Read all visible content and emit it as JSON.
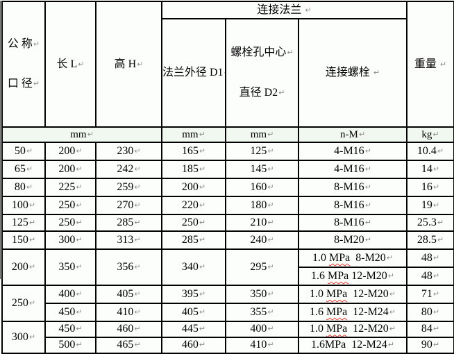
{
  "marks": {
    "paragraph": "↵"
  },
  "colors": {
    "grid": "#000000",
    "cell_bg": "#fcfefc",
    "units_bg": "#f1f8ef",
    "spellcheck_wavy": "#e23b2e",
    "paragraph_mark": "#8c8c8c",
    "text": "#000000"
  },
  "header": {
    "dn_line1": "公 称",
    "dn_line2": "口 径",
    "length": "长 L",
    "height": "高 H",
    "flange_group": "连接法兰 ",
    "flange_od": "法兰外径 D1",
    "bolt_circle_line1": "螺栓孔中心",
    "bolt_circle_line2": "直径 D2",
    "bolts": "连接螺栓 ",
    "weight": "重量 "
  },
  "units": {
    "dims": "mm",
    "d1": "mm",
    "d2": "mm",
    "bolts": "n-M",
    "weight": "kg"
  },
  "rows": [
    {
      "dn": "50",
      "l": "200",
      "h": "230",
      "d1": "165",
      "d2": "125",
      "bolts": "4-M16",
      "w": "10.4"
    },
    {
      "dn": "65",
      "l": "200",
      "h": "242",
      "d1": "185",
      "d2": "145",
      "bolts": "4-M16",
      "w": "14"
    },
    {
      "dn": "80",
      "l": "225",
      "h": "259",
      "d1": "200",
      "d2": "160",
      "bolts": "8-M16",
      "w": "16"
    },
    {
      "dn": "100",
      "l": "250",
      "h": "270",
      "d1": "220",
      "d2": "180",
      "bolts": "8-M16",
      "w": "19"
    },
    {
      "dn": "125",
      "l": "250",
      "h": "285",
      "d1": "250",
      "d2": "210",
      "bolts": "8-M16",
      "w": "25.3"
    },
    {
      "dn": "150",
      "l": "300",
      "h": "313",
      "d1": "285",
      "d2": "240",
      "bolts": "8-M20",
      "w": "28.5"
    }
  ],
  "block200": {
    "dn": "200",
    "l": "350",
    "h": "356",
    "d1": "340",
    "d2": "295",
    "sub": [
      {
        "bolts_pre": "1.0 ",
        "bolts_mpa": "MPa",
        "bolts_post": "  8-M20",
        "w": "48"
      },
      {
        "bolts_pre": "1.6 ",
        "bolts_mpa": "MPa",
        "bolts_post": " 12-M20",
        "w": "48"
      }
    ]
  },
  "block250": {
    "dn": "250",
    "sub": [
      {
        "l": "400",
        "h": "405",
        "d1": "395",
        "d2": "350",
        "bolts_pre": "1.0 ",
        "bolts_mpa": "MPa",
        "bolts_post": "  12-M20",
        "w": "71"
      },
      {
        "l": "450",
        "h": "410",
        "d1": "405",
        "d2": "355",
        "bolts_pre": "1.6 ",
        "bolts_mpa": "MPa",
        "bolts_post": "  12-M24",
        "w": "80"
      }
    ]
  },
  "block300": {
    "dn": "300",
    "sub": [
      {
        "l": "450",
        "h": "460",
        "d1": "445",
        "d2": "400",
        "bolts_pre": "1.0 ",
        "bolts_mpa": "MPa",
        "bolts_post": "  12-M20",
        "w": "84"
      },
      {
        "l": "500",
        "h": "465",
        "d1": "460",
        "d2": "410",
        "bolts_pre": "1.6MPa  12-M24",
        "bolts_mpa": "",
        "bolts_post": "",
        "w": "90"
      }
    ]
  }
}
